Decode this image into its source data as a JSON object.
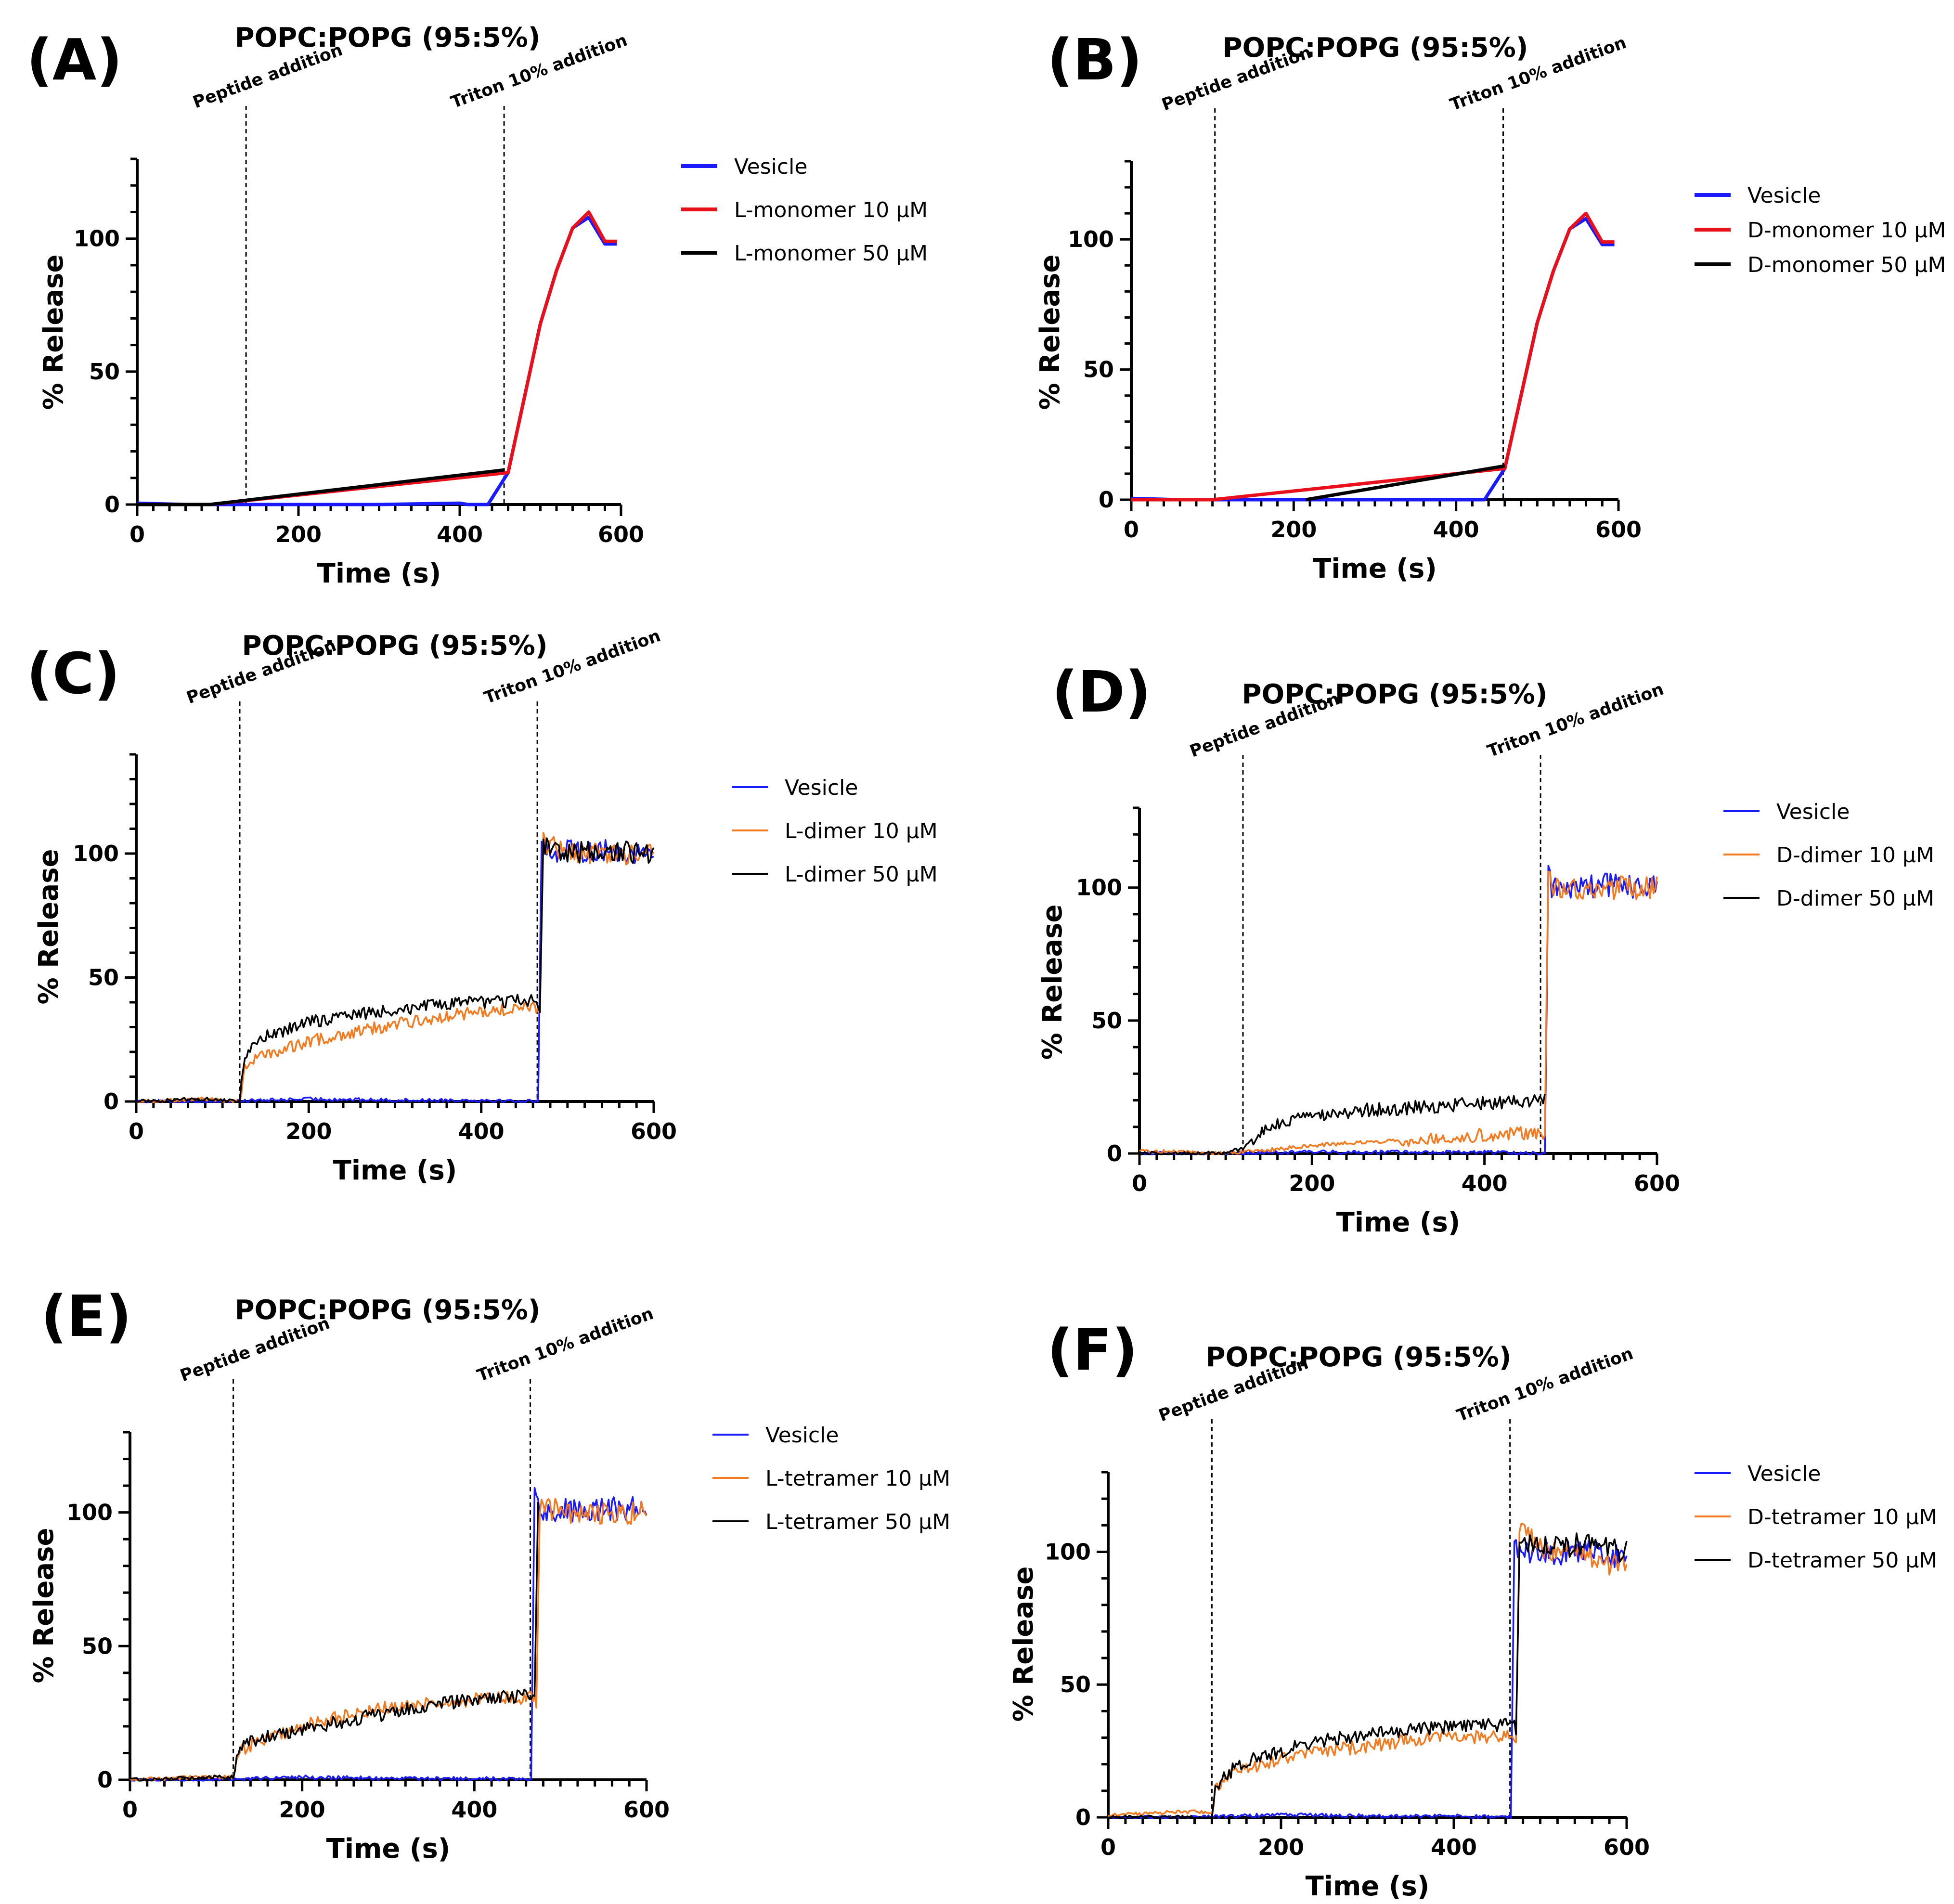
{
  "chart_data": [
    {
      "label": "(A)",
      "type": "line",
      "title": "POPC:POPG (95:5%)",
      "xlabel": "Time (s)",
      "ylabel": "% Release",
      "xlim": [
        0,
        600
      ],
      "ylim": [
        0,
        130
      ],
      "xticks": [
        0,
        200,
        400,
        600
      ],
      "yticks": [
        0,
        50,
        100
      ],
      "annotations": [
        {
          "x": 135,
          "text": "Peptide addition"
        },
        {
          "x": 455,
          "text": "Triton 10% addition"
        }
      ],
      "series": [
        {
          "name": "Vesicle",
          "color": "#1a1aff",
          "style": "thick",
          "x": [
            0,
            60,
            100,
            200,
            300,
            400,
            410,
            435,
            460,
            480,
            500,
            520,
            540,
            560,
            580,
            595
          ],
          "y": [
            0.5,
            0,
            0,
            0,
            0,
            0.5,
            0,
            0,
            12,
            40,
            68,
            88,
            104,
            108,
            98,
            98
          ]
        },
        {
          "name": "L-monomer 10 µM",
          "color": "#e8101a",
          "style": "thick",
          "x": [
            0,
            90,
            460,
            480,
            500,
            520,
            540,
            560,
            580,
            595
          ],
          "y": [
            0,
            0,
            12,
            40,
            68,
            88,
            104,
            110,
            99,
            99
          ]
        },
        {
          "name": "L-monomer 50 µM",
          "color": "#000000",
          "style": "thick",
          "x": [
            0,
            90,
            455
          ],
          "y": [
            0,
            0,
            13
          ]
        }
      ]
    },
    {
      "label": "(B)",
      "type": "line",
      "title": "POPC:POPG (95:5%)",
      "xlabel": "Time (s)",
      "ylabel": "% Release",
      "xlim": [
        0,
        600
      ],
      "ylim": [
        0,
        130
      ],
      "xticks": [
        0,
        200,
        400,
        600
      ],
      "yticks": [
        0,
        50,
        100
      ],
      "annotations": [
        {
          "x": 103,
          "text": "Peptide addition"
        },
        {
          "x": 458,
          "text": "Triton 10% addition"
        }
      ],
      "series": [
        {
          "name": "Vesicle",
          "color": "#1a1aff",
          "style": "thick",
          "x": [
            0,
            60,
            100,
            200,
            300,
            400,
            435,
            460,
            480,
            500,
            520,
            540,
            560,
            580,
            595
          ],
          "y": [
            0.5,
            0,
            0,
            0,
            0,
            0,
            0,
            12,
            40,
            68,
            88,
            104,
            108,
            98,
            98
          ]
        },
        {
          "name": "D-monomer 10 µM",
          "color": "#e8101a",
          "style": "thick",
          "x": [
            0,
            100,
            460,
            480,
            500,
            520,
            540,
            560,
            580,
            595
          ],
          "y": [
            0,
            0,
            12,
            40,
            68,
            88,
            104,
            110,
            99,
            99
          ]
        },
        {
          "name": "D-monomer 50 µM",
          "color": "#000000",
          "style": "thick",
          "x": [
            215,
            460
          ],
          "y": [
            0,
            13
          ]
        }
      ]
    },
    {
      "label": "(C)",
      "type": "line",
      "title": "POPC:POPG (95:5%)",
      "xlabel": "Time (s)",
      "ylabel": "% Release",
      "xlim": [
        0,
        600
      ],
      "ylim": [
        0,
        140
      ],
      "xticks": [
        0,
        200,
        400,
        600
      ],
      "yticks": [
        0,
        50,
        100
      ],
      "annotations": [
        {
          "x": 120,
          "text": "Peptide addition"
        },
        {
          "x": 465,
          "text": "Triton 10% addition"
        }
      ],
      "series": [
        {
          "name": "Vesicle",
          "color": "#1a1aff",
          "style": "thin",
          "x": [
            0,
            100,
            200,
            300,
            400,
            466,
            470,
            475,
            500,
            550,
            600
          ],
          "y": [
            0,
            0,
            1,
            0.5,
            0.5,
            0,
            108,
            101,
            101,
            101,
            100
          ]
        },
        {
          "name": "L-dimer 10 µM",
          "color": "#f47a1f",
          "style": "thin",
          "x": [
            0,
            80,
            120,
            125,
            150,
            200,
            250,
            300,
            350,
            400,
            465,
            468,
            472,
            500,
            550,
            600
          ],
          "y": [
            0,
            1,
            0,
            14,
            19,
            24,
            28,
            31,
            34,
            36,
            38,
            34,
            104,
            100,
            100,
            100
          ]
        },
        {
          "name": "L-dimer 50 µM",
          "color": "#000000",
          "style": "thin",
          "x": [
            0,
            80,
            120,
            125,
            150,
            200,
            250,
            300,
            350,
            400,
            465,
            468,
            472,
            500,
            550,
            600
          ],
          "y": [
            0,
            1,
            0,
            18,
            26,
            32,
            35,
            37,
            39,
            40,
            41,
            38,
            103,
            100,
            101,
            100
          ]
        }
      ]
    },
    {
      "label": "(D)",
      "type": "line",
      "title": "POPC:POPG (95:5%)",
      "xlabel": "Time (s)",
      "ylabel": "% Release",
      "xlim": [
        0,
        600
      ],
      "ylim": [
        0,
        130
      ],
      "xticks": [
        0,
        200,
        400,
        600
      ],
      "yticks": [
        0,
        50,
        100
      ],
      "annotations": [
        {
          "x": 120,
          "text": "Peptide addition"
        },
        {
          "x": 465,
          "text": "Triton 10% addition"
        }
      ],
      "series": [
        {
          "name": "Vesicle",
          "color": "#1a1aff",
          "style": "thin",
          "x": [
            0,
            100,
            200,
            300,
            400,
            470,
            474,
            478,
            500,
            550,
            600
          ],
          "y": [
            0,
            0,
            0.5,
            0.5,
            0.5,
            0,
            107,
            100,
            100,
            101,
            100
          ]
        },
        {
          "name": "D-dimer 10 µM",
          "color": "#f47a1f",
          "style": "thin",
          "x": [
            0,
            100,
            140,
            200,
            250,
            300,
            350,
            400,
            465,
            470,
            474,
            478,
            500,
            550,
            600
          ],
          "y": [
            1,
            0,
            1,
            3,
            4,
            5,
            6,
            7,
            8,
            8,
            110,
            100,
            100,
            100,
            100
          ]
        },
        {
          "name": "D-dimer 50 µM",
          "color": "#000000",
          "style": "thin",
          "x": [
            0,
            100,
            120,
            150,
            200,
            250,
            300,
            350,
            400,
            465,
            470
          ],
          "y": [
            0,
            0,
            2,
            10,
            14,
            16,
            17,
            18,
            19,
            20,
            20
          ]
        }
      ]
    },
    {
      "label": "(E)",
      "type": "line",
      "title": "POPC:POPG (95:5%)",
      "xlabel": "Time (s)",
      "ylabel": "% Release",
      "xlim": [
        0,
        600
      ],
      "ylim": [
        0,
        130
      ],
      "xticks": [
        0,
        200,
        400,
        600
      ],
      "yticks": [
        0,
        50,
        100
      ],
      "annotations": [
        {
          "x": 120,
          "text": "Peptide addition"
        },
        {
          "x": 465,
          "text": "Triton 10% addition"
        }
      ],
      "series": [
        {
          "name": "Vesicle",
          "color": "#1a1aff",
          "style": "thin",
          "x": [
            0,
            100,
            200,
            300,
            400,
            466,
            470,
            474,
            500,
            550,
            600
          ],
          "y": [
            0,
            0,
            1,
            0.5,
            0.5,
            0,
            105,
            101,
            101,
            101,
            102
          ]
        },
        {
          "name": "L-tetramer 10 µM",
          "color": "#f47a1f",
          "style": "thin",
          "x": [
            0,
            80,
            120,
            125,
            150,
            200,
            250,
            300,
            350,
            400,
            470,
            472,
            476,
            500,
            550,
            600
          ],
          "y": [
            0,
            1,
            1,
            10,
            15,
            20,
            24,
            27,
            29,
            30,
            31,
            26,
            103,
            100,
            100,
            100
          ]
        },
        {
          "name": "L-tetramer 50 µM",
          "color": "#000000",
          "style": "thin",
          "x": [
            0,
            80,
            120,
            125,
            150,
            200,
            250,
            300,
            350,
            400,
            470,
            474
          ],
          "y": [
            0,
            1,
            1,
            12,
            15,
            19,
            22,
            25,
            28,
            30,
            32,
            101
          ]
        }
      ]
    },
    {
      "label": "(F)",
      "type": "line",
      "title": "POPC:POPG (95:5%)",
      "xlabel": "Time (s)",
      "ylabel": "% Release",
      "xlim": [
        0,
        600
      ],
      "ylim": [
        0,
        130
      ],
      "xticks": [
        0,
        200,
        400,
        600
      ],
      "yticks": [
        0,
        50,
        100
      ],
      "annotations": [
        {
          "x": 120,
          "text": "Peptide addition"
        },
        {
          "x": 465,
          "text": "Triton 10% addition"
        }
      ],
      "series": [
        {
          "name": "Vesicle",
          "color": "#1a1aff",
          "style": "thin",
          "x": [
            0,
            100,
            200,
            300,
            400,
            466,
            470,
            474,
            500,
            550,
            600
          ],
          "y": [
            0,
            0,
            1,
            0.5,
            0.5,
            0,
            105,
            100,
            99,
            100,
            98
          ]
        },
        {
          "name": "D-tetramer 10 µM",
          "color": "#f47a1f",
          "style": "thin",
          "x": [
            0,
            80,
            120,
            125,
            150,
            200,
            250,
            300,
            350,
            400,
            470,
            472,
            476,
            500,
            550,
            600
          ],
          "y": [
            1,
            2,
            2,
            12,
            17,
            22,
            25,
            27,
            29,
            30,
            31,
            28,
            107,
            102,
            99,
            93
          ]
        },
        {
          "name": "D-tetramer 50 µM",
          "color": "#000000",
          "style": "thin",
          "x": [
            0,
            80,
            120,
            125,
            150,
            200,
            250,
            300,
            350,
            400,
            470,
            472,
            476,
            500,
            550,
            600
          ],
          "y": [
            0,
            0,
            0,
            12,
            20,
            25,
            29,
            31,
            33,
            34,
            35,
            32,
            105,
            101,
            103,
            100
          ]
        }
      ]
    }
  ]
}
